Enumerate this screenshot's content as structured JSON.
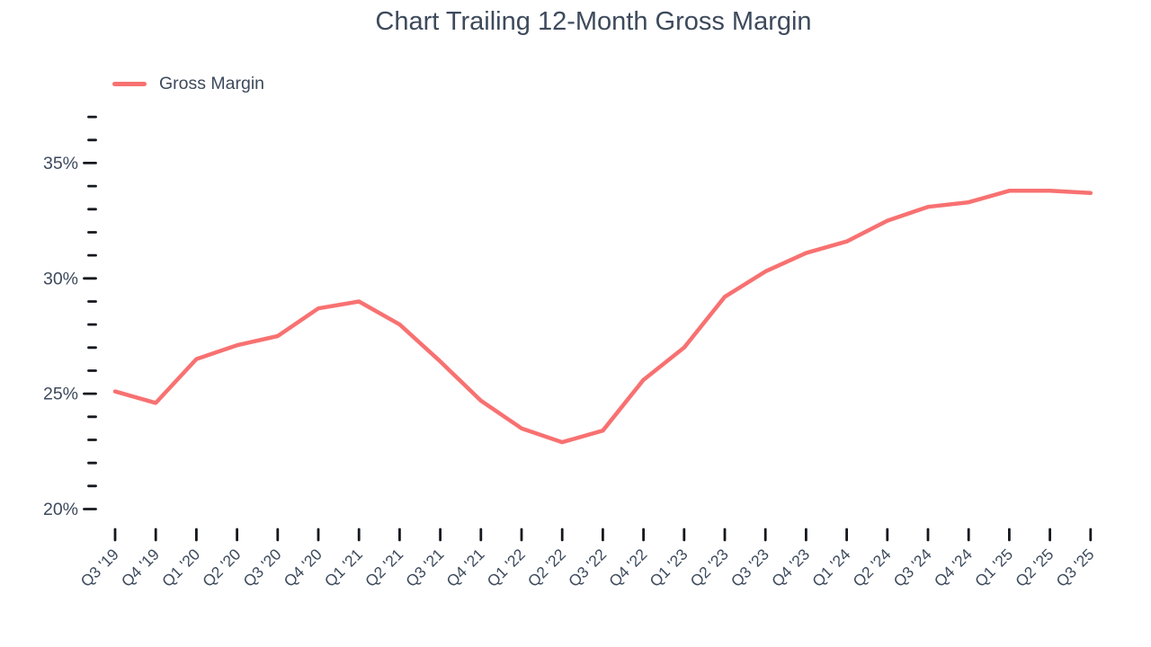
{
  "chart_data": {
    "type": "line",
    "title": "Chart Trailing 12-Month Gross Margin",
    "xlabel": "",
    "ylabel": "",
    "grid": false,
    "legend": {
      "position": "top-left"
    },
    "colors": {
      "series": "#f87171",
      "text": "#3d4a5c",
      "ticks": "#15181d",
      "background": "#ffffff"
    },
    "categories": [
      "Q3 '19",
      "Q4 '19",
      "Q1 '20",
      "Q2 '20",
      "Q3 '20",
      "Q4 '20",
      "Q1 '21",
      "Q2 '21",
      "Q3 '21",
      "Q4 '21",
      "Q1 '22",
      "Q2 '22",
      "Q3 '22",
      "Q4 '22",
      "Q1 '23",
      "Q2 '23",
      "Q3 '23",
      "Q4 '23",
      "Q1 '24",
      "Q2 '24",
      "Q3 '24",
      "Q4 '24",
      "Q1 '25",
      "Q2 '25",
      "Q3 '25"
    ],
    "series": [
      {
        "name": "Gross Margin",
        "color": "#f87171",
        "values": [
          25.1,
          24.6,
          26.5,
          27.1,
          27.5,
          28.7,
          29.0,
          28.0,
          26.4,
          24.7,
          23.5,
          22.9,
          23.4,
          25.6,
          27.0,
          29.2,
          30.3,
          31.1,
          31.6,
          32.5,
          33.1,
          33.3,
          33.8,
          33.8,
          33.7
        ]
      }
    ],
    "y_axis": {
      "unit": "%",
      "tick_min": 20,
      "tick_max": 37,
      "minor_tick_step": 1,
      "labeled_ticks": [
        20,
        25,
        30,
        35
      ],
      "labels": [
        "20%",
        "25%",
        "30%",
        "35%"
      ],
      "ylim": [
        20,
        37
      ]
    }
  }
}
